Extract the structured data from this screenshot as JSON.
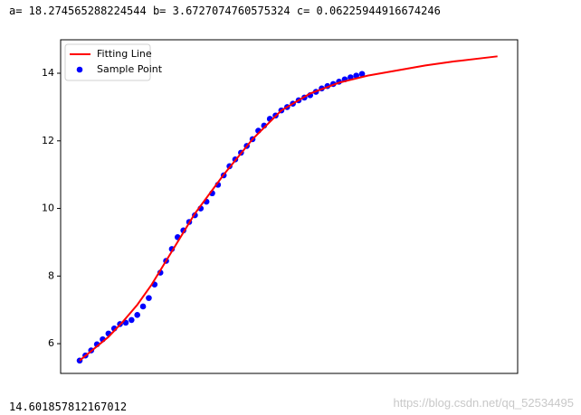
{
  "output_top": "a= 18.274565288224544 b= 3.6727074760575324 c= 0.06225944916674246",
  "output_bottom": "14.601857812167012",
  "watermark": "https://blog.csdn.net/qq_52534495",
  "chart_data": {
    "type": "combo",
    "legend": "upper left",
    "xlim": [
      -3.3,
      76
    ],
    "ylim": [
      5.12,
      14.99
    ],
    "yticks": [
      6,
      8,
      10,
      12,
      14
    ],
    "series": [
      {
        "name": "Fitting Line",
        "type": "line",
        "color": "#ff0000",
        "x": [
          0,
          2.5,
          5,
          7.5,
          10,
          12.5,
          15,
          17.5,
          20,
          25,
          30,
          35,
          40,
          45,
          50,
          55,
          60,
          65,
          70,
          72.5
        ],
        "values": [
          5.5,
          5.85,
          6.2,
          6.65,
          7.15,
          7.75,
          8.45,
          9.15,
          9.85,
          11.0,
          12.05,
          12.9,
          13.4,
          13.72,
          13.93,
          14.08,
          14.23,
          14.35,
          14.45,
          14.5
        ]
      },
      {
        "name": "Sample Point",
        "type": "scatter",
        "color": "#0000ff",
        "x": [
          0,
          1,
          2,
          3,
          4,
          5,
          6,
          7,
          8,
          9,
          10,
          11,
          12,
          13,
          14,
          15,
          16,
          17,
          18,
          19,
          20,
          21,
          22,
          23,
          24,
          25,
          26,
          27,
          28,
          29,
          30,
          31,
          32,
          33,
          34,
          35,
          36,
          37,
          38,
          39,
          40,
          41,
          42,
          43,
          44,
          45,
          46,
          47,
          48,
          49
        ],
        "values": [
          5.5,
          5.65,
          5.8,
          5.98,
          6.13,
          6.3,
          6.45,
          6.58,
          6.62,
          6.7,
          6.85,
          7.1,
          7.35,
          7.75,
          8.1,
          8.45,
          8.8,
          9.15,
          9.35,
          9.6,
          9.8,
          10.0,
          10.2,
          10.45,
          10.7,
          10.98,
          11.25,
          11.45,
          11.65,
          11.85,
          12.05,
          12.3,
          12.45,
          12.65,
          12.75,
          12.9,
          13.0,
          13.1,
          13.2,
          13.28,
          13.35,
          13.45,
          13.55,
          13.62,
          13.68,
          13.75,
          13.82,
          13.88,
          13.93,
          13.98
        ]
      }
    ]
  }
}
